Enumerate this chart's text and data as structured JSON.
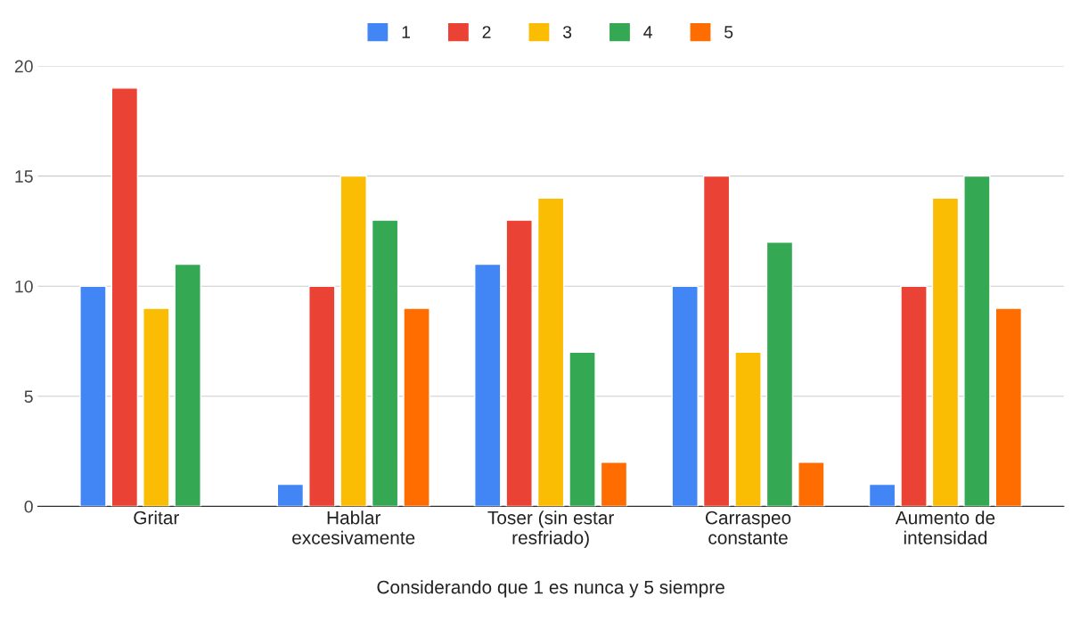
{
  "chart_data": {
    "type": "bar",
    "xlabel": "Considerando que 1 es nunca y 5 siempre",
    "categories": [
      "Gritar",
      "Hablar\nexcesivamente",
      "Toser (sin estar\nresfriado)",
      "Carraspeo\nconstante",
      "Aumento de\nintensidad"
    ],
    "series": [
      {
        "name": "1",
        "color": "#4285f4",
        "values": [
          10,
          1,
          11,
          10,
          1
        ]
      },
      {
        "name": "2",
        "color": "#ea4335",
        "values": [
          19,
          10,
          13,
          15,
          10
        ]
      },
      {
        "name": "3",
        "color": "#fbbc04",
        "values": [
          9,
          15,
          14,
          7,
          14
        ]
      },
      {
        "name": "4",
        "color": "#34a853",
        "values": [
          11,
          13,
          7,
          12,
          15
        ]
      },
      {
        "name": "5",
        "color": "#ff6d01",
        "values": [
          null,
          9,
          2,
          2,
          9
        ]
      }
    ],
    "ylim": [
      0,
      20
    ],
    "yticks": [
      0,
      5,
      10,
      15,
      20
    ],
    "grid": "y",
    "legend": "top"
  }
}
